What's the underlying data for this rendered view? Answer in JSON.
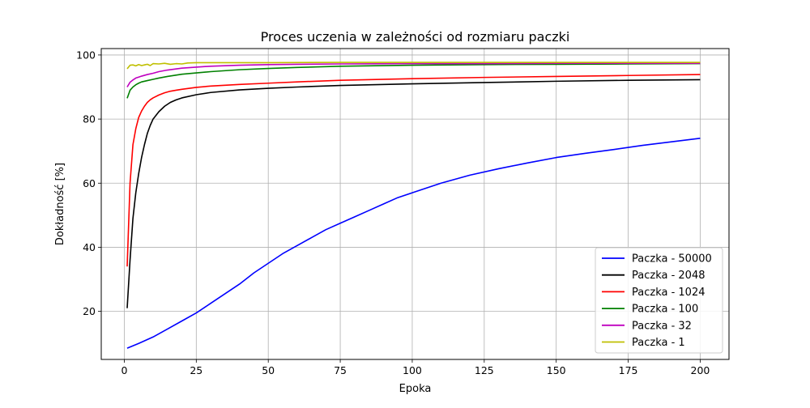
{
  "chart_data": {
    "type": "line",
    "title": "Proces uczenia w zależności od rozmiaru paczki",
    "xlabel": "Epoka",
    "ylabel": "Dokładność [%]",
    "xlim": [
      -8,
      210
    ],
    "ylim": [
      5,
      102
    ],
    "xticks": [
      0,
      25,
      50,
      75,
      100,
      125,
      150,
      175,
      200
    ],
    "yticks": [
      20,
      40,
      60,
      80,
      100
    ],
    "grid": true,
    "legend_position": "lower-right",
    "series": [
      {
        "name": "Paczka - 50000",
        "color": "#0000ff",
        "x": [
          1,
          5,
          10,
          15,
          20,
          25,
          30,
          35,
          40,
          45,
          50,
          55,
          60,
          65,
          70,
          75,
          80,
          85,
          90,
          95,
          100,
          110,
          120,
          130,
          140,
          150,
          160,
          170,
          180,
          190,
          200
        ],
        "y": [
          8.5,
          10,
          12,
          14.5,
          17,
          19.5,
          22.5,
          25.5,
          28.5,
          32,
          35,
          38,
          40.5,
          43,
          45.5,
          47.5,
          49.5,
          51.5,
          53.5,
          55.5,
          57,
          60,
          62.5,
          64.5,
          66.3,
          68,
          69.3,
          70.5,
          71.8,
          72.9,
          74
        ]
      },
      {
        "name": "Paczka - 2048",
        "color": "#000000",
        "x": [
          1,
          2,
          3,
          4,
          5,
          6,
          7,
          8,
          9,
          10,
          12,
          14,
          16,
          18,
          20,
          25,
          30,
          40,
          50,
          60,
          75,
          100,
          125,
          150,
          175,
          200
        ],
        "y": [
          21,
          36,
          49,
          57,
          63,
          68,
          72,
          75.5,
          78,
          80,
          82.3,
          84,
          85.2,
          86,
          86.6,
          87.6,
          88.3,
          89.1,
          89.6,
          90,
          90.5,
          91,
          91.4,
          91.8,
          92.1,
          92.3
        ]
      },
      {
        "name": "Paczka - 1024",
        "color": "#ff0000",
        "x": [
          1,
          2,
          3,
          4,
          5,
          6,
          7,
          8,
          9,
          10,
          12,
          14,
          16,
          18,
          20,
          25,
          30,
          40,
          50,
          60,
          75,
          100,
          125,
          150,
          175,
          200
        ],
        "y": [
          34,
          60,
          72,
          77,
          80.5,
          82.5,
          84,
          85.2,
          86,
          86.6,
          87.5,
          88.2,
          88.7,
          89,
          89.3,
          89.9,
          90.3,
          90.8,
          91.2,
          91.6,
          92.1,
          92.6,
          93,
          93.3,
          93.6,
          93.9
        ]
      },
      {
        "name": "Paczka - 100",
        "color": "#008000",
        "x": [
          1,
          2,
          3,
          4,
          5,
          6,
          8,
          10,
          12,
          15,
          20,
          25,
          30,
          40,
          50,
          60,
          75,
          100,
          125,
          150,
          175,
          200
        ],
        "y": [
          86.5,
          89,
          90,
          90.7,
          91.2,
          91.6,
          92,
          92.4,
          92.8,
          93.3,
          94,
          94.4,
          94.8,
          95.4,
          95.8,
          96.1,
          96.5,
          96.8,
          97,
          97.1,
          97.2,
          97.3
        ]
      },
      {
        "name": "Paczka - 32",
        "color": "#bf00bf",
        "x": [
          1,
          2,
          3,
          4,
          5,
          6,
          8,
          10,
          12,
          15,
          20,
          25,
          30,
          40,
          50,
          60,
          75,
          100,
          125,
          150,
          175,
          200
        ],
        "y": [
          90,
          91.5,
          92.2,
          92.8,
          93.1,
          93.4,
          93.9,
          94.3,
          94.8,
          95.3,
          95.9,
          96.2,
          96.5,
          96.8,
          97,
          97.1,
          97.2,
          97.3,
          97.3,
          97.4,
          97.4,
          97.4
        ]
      },
      {
        "name": "Paczka - 1",
        "color": "#bfbf00",
        "x": [
          1,
          2,
          3,
          4,
          5,
          6,
          7,
          8,
          9,
          10,
          12,
          14,
          16,
          18,
          20,
          22,
          25,
          30,
          40,
          50,
          75,
          100,
          125,
          150,
          175,
          200
        ],
        "y": [
          95.7,
          96.8,
          96.9,
          96.6,
          97,
          96.7,
          96.9,
          97.1,
          96.7,
          97.3,
          97.2,
          97.4,
          97.1,
          97.3,
          97.2,
          97.5,
          97.6,
          97.6,
          97.6,
          97.6,
          97.7,
          97.7,
          97.7,
          97.7,
          97.7,
          97.7
        ]
      }
    ]
  }
}
